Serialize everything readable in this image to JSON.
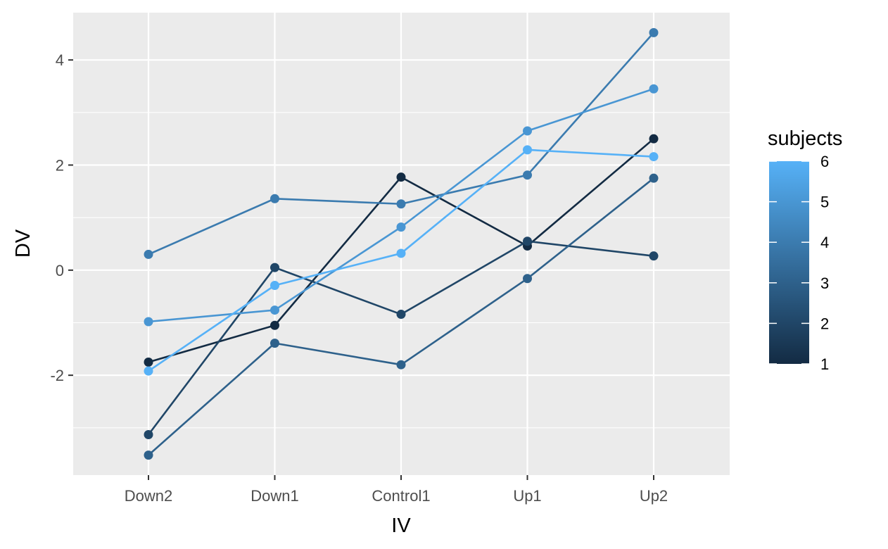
{
  "chart_data": {
    "type": "line",
    "xlabel": "IV",
    "ylabel": "DV",
    "categories": [
      "Down2",
      "Down1",
      "Control1",
      "Up1",
      "Up2"
    ],
    "ylim": [
      -3.9,
      4.9
    ],
    "y_ticks": [
      -2,
      0,
      2,
      4
    ],
    "y_tick_labels": [
      "-2",
      "0",
      "2",
      "4"
    ],
    "grid": true,
    "legend": {
      "title": "subjects",
      "position": "right",
      "type": "colorbar",
      "range": [
        1,
        6
      ],
      "ticks": [
        1,
        2,
        3,
        4,
        5,
        6
      ],
      "tick_labels": [
        "1",
        "2",
        "3",
        "4",
        "5",
        "6"
      ],
      "color_low": "#132B43",
      "color_high": "#56B1F7"
    },
    "series": [
      {
        "subject": 1,
        "values": [
          -1.75,
          -1.05,
          1.77,
          0.46,
          2.5
        ]
      },
      {
        "subject": 2,
        "values": [
          -3.13,
          0.05,
          -0.84,
          0.55,
          0.27
        ]
      },
      {
        "subject": 3,
        "values": [
          -3.52,
          -1.39,
          -1.8,
          -0.16,
          1.75
        ]
      },
      {
        "subject": 4,
        "values": [
          0.3,
          1.36,
          1.26,
          1.81,
          4.52
        ]
      },
      {
        "subject": 5,
        "values": [
          -0.98,
          -0.76,
          0.82,
          2.65,
          3.45
        ]
      },
      {
        "subject": 6,
        "values": [
          -1.92,
          -0.29,
          0.32,
          2.29,
          2.16
        ]
      }
    ]
  }
}
